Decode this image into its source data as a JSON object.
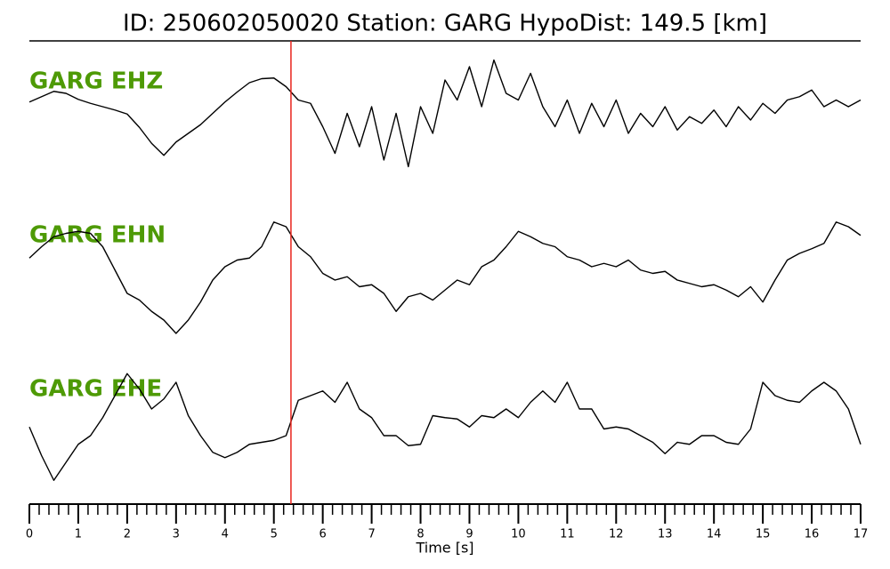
{
  "chart_data": {
    "type": "line",
    "title": "ID: 250602050020   Station: GARG   HypoDist:   149.5 [km]",
    "xlabel": "Time [s]",
    "xlim": [
      0,
      17
    ],
    "xticks": [
      0,
      1,
      2,
      3,
      4,
      5,
      6,
      7,
      8,
      9,
      10,
      11,
      12,
      13,
      14,
      15,
      16,
      17
    ],
    "xticks_minor": [
      0.2,
      0.4,
      0.6,
      0.8,
      1.2,
      1.4,
      1.6,
      1.8,
      2.2,
      2.4,
      2.6,
      2.8,
      3.2,
      3.4,
      3.6,
      3.8,
      4.2,
      4.4,
      4.6,
      4.8,
      5.2,
      5.4,
      5.6,
      5.8,
      6.2,
      6.4,
      6.6,
      6.8,
      7.2,
      7.4,
      7.6,
      7.8,
      8.2,
      8.4,
      8.6,
      8.8,
      9.2,
      9.4,
      9.6,
      9.8,
      10.2,
      10.4,
      10.6,
      10.8,
      11.2,
      11.4,
      11.6,
      11.8,
      12.2,
      12.4,
      12.6,
      12.8,
      13.2,
      13.4,
      13.6,
      13.8,
      14.2,
      14.4,
      14.6,
      14.8,
      15.2,
      15.4,
      15.6,
      15.8,
      16.2,
      16.4,
      16.6,
      16.8
    ],
    "ylim": [
      -1.5,
      1.5
    ],
    "pick_time": 5.35,
    "pick_color": "#e8241c",
    "label_color": "#4e9a06",
    "x": [
      0,
      0.25,
      0.5,
      0.75,
      1,
      1.25,
      1.5,
      1.75,
      2,
      2.25,
      2.5,
      2.75,
      3,
      3.25,
      3.5,
      3.75,
      4,
      4.25,
      4.5,
      4.75,
      5,
      5.25,
      5.5,
      5.75,
      6,
      6.25,
      6.5,
      6.75,
      7,
      7.25,
      7.5,
      7.75,
      8,
      8.25,
      8.5,
      8.75,
      9,
      9.25,
      9.5,
      9.75,
      10,
      10.25,
      10.5,
      10.75,
      11,
      11.25,
      11.5,
      11.75,
      12,
      12.25,
      12.5,
      12.75,
      13,
      13.25,
      13.5,
      13.75,
      14,
      14.25,
      14.5,
      14.75,
      15,
      15.25,
      15.5,
      15.75,
      16,
      16.25,
      16.5,
      16.75,
      17
    ],
    "series": [
      {
        "name": "GARG EHZ",
        "color": "#000000",
        "values": [
          0.27,
          0.35,
          0.43,
          0.4,
          0.31,
          0.25,
          0.2,
          0.15,
          0.09,
          -0.11,
          -0.35,
          -0.53,
          -0.33,
          -0.2,
          -0.07,
          0.1,
          0.27,
          0.42,
          0.56,
          0.62,
          0.63,
          0.5,
          0.3,
          0.25,
          -0.1,
          -0.5,
          0.1,
          -0.4,
          0.2,
          -0.6,
          0.1,
          -0.7,
          0.2,
          -0.2,
          0.6,
          0.3,
          0.8,
          0.2,
          0.9,
          0.4,
          0.3,
          0.7,
          0.2,
          -0.1,
          0.3,
          -0.2,
          0.25,
          -0.1,
          0.3,
          -0.2,
          0.1,
          -0.1,
          0.2,
          -0.15,
          0.05,
          -0.05,
          0.15,
          -0.1,
          0.2,
          0,
          0.25,
          0.1,
          0.3,
          0.35,
          0.45,
          0.2,
          0.3,
          0.2,
          0.3
        ]
      },
      {
        "name": "GARG EHN",
        "color": "#000000",
        "values": [
          0.13,
          0.3,
          0.45,
          0.5,
          0.53,
          0.5,
          0.3,
          -0.05,
          -0.4,
          -0.5,
          -0.67,
          -0.8,
          -1.0,
          -0.8,
          -0.53,
          -0.2,
          0,
          0.1,
          0.13,
          0.3,
          0.67,
          0.6,
          0.3,
          0.15,
          -0.1,
          -0.2,
          -0.15,
          -0.3,
          -0.27,
          -0.4,
          -0.67,
          -0.45,
          -0.4,
          -0.5,
          -0.35,
          -0.2,
          -0.27,
          0,
          0.1,
          0.3,
          0.53,
          0.45,
          0.35,
          0.3,
          0.15,
          0.1,
          0,
          0.05,
          0,
          0.1,
          -0.05,
          -0.1,
          -0.07,
          -0.2,
          -0.25,
          -0.3,
          -0.27,
          -0.35,
          -0.45,
          -0.3,
          -0.53,
          -0.2,
          0.1,
          0.2,
          0.27,
          0.35,
          0.67,
          0.6,
          0.47
        ]
      },
      {
        "name": "GARG EHE",
        "color": "#000000",
        "values": [
          -0.07,
          -0.5,
          -0.87,
          -0.6,
          -0.33,
          -0.2,
          0.07,
          0.4,
          0.73,
          0.5,
          0.2,
          0.35,
          0.6,
          0.1,
          -0.2,
          -0.45,
          -0.53,
          -0.45,
          -0.33,
          -0.3,
          -0.27,
          -0.2,
          0.33,
          0.4,
          0.47,
          0.3,
          0.6,
          0.2,
          0.07,
          -0.2,
          -0.2,
          -0.35,
          -0.33,
          0.1,
          0.07,
          0.05,
          -0.07,
          0.1,
          0.07,
          0.2,
          0.07,
          0.3,
          0.47,
          0.3,
          0.6,
          0.2,
          0.2,
          -0.1,
          -0.07,
          -0.1,
          -0.2,
          -0.3,
          -0.47,
          -0.3,
          -0.33,
          -0.2,
          -0.2,
          -0.3,
          -0.33,
          -0.1,
          0.6,
          0.4,
          0.33,
          0.3,
          0.47,
          0.6,
          0.47,
          0.2,
          -0.33
        ]
      }
    ]
  }
}
